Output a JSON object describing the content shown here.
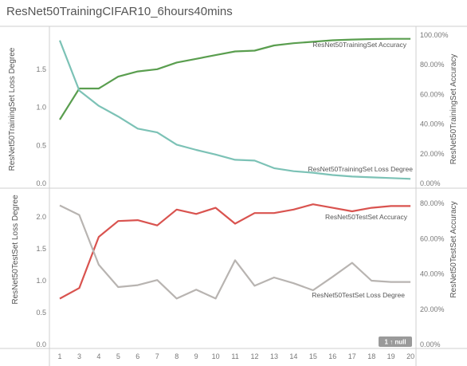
{
  "page_title": "ResNet50TrainingCIFAR10_6hours40mins",
  "badge": "1 ↑ null",
  "chart_data": [
    {
      "type": "line",
      "x": [
        1,
        2,
        3,
        4,
        5,
        6,
        7,
        8,
        9,
        10,
        11,
        12,
        13,
        14,
        15,
        16,
        17,
        18,
        19
      ],
      "x_tick_labels": [
        "1",
        "3",
        "4",
        "5",
        "6",
        "7",
        "8",
        "9",
        "10",
        "11",
        "12",
        "13",
        "14",
        "15",
        "16",
        "17",
        "18",
        "19",
        "20"
      ],
      "ylabel": "ResNet50TrainingSet Loss Degree",
      "ylabel_right": "ResNet50TrainingSet Accuracy",
      "ylim": [
        0,
        1.95
      ],
      "y_ticks": [
        "0.0",
        "0.5",
        "1.0",
        "1.5"
      ],
      "ylim_right": [
        0,
        1
      ],
      "y_ticks_right": [
        "0.00%",
        "20.00%",
        "40.00%",
        "60.00%",
        "80.00%",
        "100.00%"
      ],
      "series": [
        {
          "name": "ResNet50TrainingSet Accuracy",
          "axis": "right",
          "color": "#5a9e4f",
          "values": [
            0.43,
            0.64,
            0.64,
            0.72,
            0.755,
            0.77,
            0.815,
            0.84,
            0.865,
            0.89,
            0.895,
            0.93,
            0.945,
            0.955,
            0.965,
            0.97,
            0.973,
            0.975,
            0.975
          ]
        },
        {
          "name": "ResNet50TrainingSet Loss Degree",
          "axis": "left",
          "color": "#7cc2b6",
          "values": [
            1.88,
            1.22,
            1.02,
            0.88,
            0.72,
            0.67,
            0.51,
            0.44,
            0.38,
            0.31,
            0.3,
            0.2,
            0.16,
            0.14,
            0.11,
            0.09,
            0.08,
            0.07,
            0.06
          ]
        }
      ]
    },
    {
      "type": "line",
      "x": [
        1,
        2,
        3,
        4,
        5,
        6,
        7,
        8,
        9,
        10,
        11,
        12,
        13,
        14,
        15,
        16,
        17,
        18,
        19
      ],
      "x_tick_labels": [
        "1",
        "3",
        "4",
        "5",
        "6",
        "7",
        "8",
        "9",
        "10",
        "11",
        "12",
        "13",
        "14",
        "15",
        "16",
        "17",
        "18",
        "19",
        "20"
      ],
      "ylabel": "ResNet50TestSet Loss Degree",
      "ylabel_right": "ResNet50TestSet Accuracy",
      "ylim": [
        0,
        2.35
      ],
      "y_ticks": [
        "0.0",
        "0.5",
        "1.0",
        "1.5",
        "2.0"
      ],
      "ylim_right": [
        0,
        0.85
      ],
      "y_ticks_right": [
        "0.00%",
        "20.00%",
        "40.00%",
        "60.00%",
        "80.00%"
      ],
      "series": [
        {
          "name": "ResNet50TestSet Accuracy",
          "axis": "right",
          "color": "#d9534f",
          "values": [
            0.26,
            0.32,
            0.61,
            0.7,
            0.705,
            0.675,
            0.765,
            0.74,
            0.775,
            0.685,
            0.745,
            0.745,
            0.765,
            0.795,
            0.775,
            0.755,
            0.775,
            0.785,
            0.785
          ]
        },
        {
          "name": "ResNet50TestSet Loss Degree",
          "axis": "left",
          "color": "#b8b4b1",
          "values": [
            2.18,
            2.03,
            1.25,
            0.9,
            0.93,
            1.01,
            0.72,
            0.86,
            0.72,
            1.32,
            0.92,
            1.05,
            0.96,
            0.85,
            1.06,
            1.28,
            1.0,
            0.98,
            0.98
          ]
        }
      ]
    }
  ]
}
